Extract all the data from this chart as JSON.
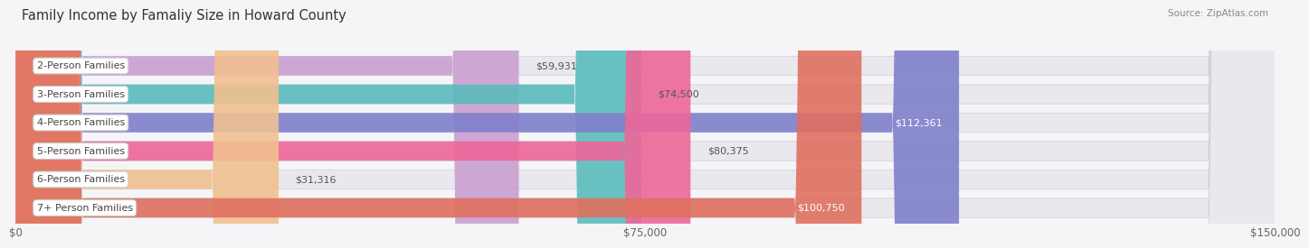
{
  "title": "FAMILY INCOME BY FAMALIY SIZE IN HOWARD COUNTY",
  "source": "Source: ZipAtlas.com",
  "categories": [
    "2-Person Families",
    "3-Person Families",
    "4-Person Families",
    "5-Person Families",
    "6-Person Families",
    "7+ Person Families"
  ],
  "values": [
    59931,
    74500,
    112361,
    80375,
    31316,
    100750
  ],
  "bar_colors": [
    "#c9a0d0",
    "#5abcbc",
    "#8080cc",
    "#ee6699",
    "#f0c090",
    "#e07060"
  ],
  "bar_bg_color": "#e8e8ee",
  "value_inside": [
    false,
    false,
    true,
    false,
    false,
    true
  ],
  "value_text_colors_outside": "#555555",
  "value_text_colors_inside": "#ffffff",
  "xlim": [
    0,
    150000
  ],
  "xticks": [
    0,
    75000,
    150000
  ],
  "xtick_labels": [
    "$0",
    "$75,000",
    "$150,000"
  ],
  "background_color": "#f5f5f8",
  "title_fontsize": 10.5,
  "label_fontsize": 8.0,
  "value_fontsize": 8.0,
  "tick_fontsize": 8.5,
  "grid_color": "#d0d0d8"
}
